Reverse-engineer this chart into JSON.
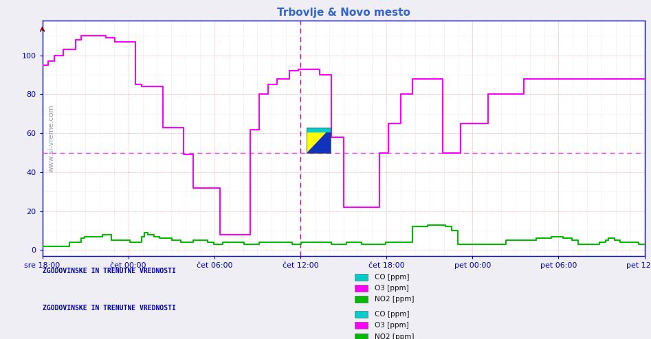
{
  "title": "Trbovlje & Novo mesto",
  "title_color": "#3366cc",
  "bg_color": "#eeeef4",
  "plot_bg_color": "#ffffff",
  "axis_color": "#0000bb",
  "grid_color_major": "#ffaaaa",
  "grid_color_minor": "#ccccdd",
  "watermark_text": "www.si-vreme.com",
  "watermark_color": "#8888aa",
  "x_labels": [
    "sre 18:00",
    "čet 00:00",
    "čet 06:00",
    "čet 12:00",
    "čet 18:00",
    "pet 00:00",
    "pet 06:00",
    "pet 12:00"
  ],
  "ylim": [
    -3,
    118
  ],
  "yticks": [
    0,
    20,
    40,
    60,
    80,
    100
  ],
  "hline_y": 50,
  "hline_color": "#ff44ff",
  "hline_style": "--",
  "o3_color": "#ff00ff",
  "no2_color": "#00bb00",
  "co_color": "#00cccc",
  "vline_color": "#aa00aa",
  "annotation_color": "#0000aa",
  "legend_entries": [
    {
      "label": "CO [ppm]",
      "color": "#00cccc"
    },
    {
      "label": "O3 [ppm]",
      "color": "#ff00ff"
    },
    {
      "label": "NO2 [ppm]",
      "color": "#00bb00"
    }
  ],
  "o3_data": [
    [
      0.0,
      95
    ],
    [
      0.01,
      97
    ],
    [
      0.02,
      100
    ],
    [
      0.035,
      103
    ],
    [
      0.055,
      108
    ],
    [
      0.065,
      110
    ],
    [
      0.095,
      110
    ],
    [
      0.105,
      109
    ],
    [
      0.12,
      107
    ],
    [
      0.14,
      107
    ],
    [
      0.155,
      85
    ],
    [
      0.165,
      84
    ],
    [
      0.185,
      84
    ],
    [
      0.2,
      63
    ],
    [
      0.22,
      63
    ],
    [
      0.235,
      49
    ],
    [
      0.25,
      32
    ],
    [
      0.28,
      32
    ],
    [
      0.295,
      8
    ],
    [
      0.33,
      8
    ],
    [
      0.345,
      62
    ],
    [
      0.36,
      80
    ],
    [
      0.375,
      85
    ],
    [
      0.39,
      88
    ],
    [
      0.41,
      92
    ],
    [
      0.425,
      93
    ],
    [
      0.45,
      93
    ],
    [
      0.46,
      90
    ],
    [
      0.475,
      90
    ],
    [
      0.48,
      58
    ],
    [
      0.495,
      58
    ],
    [
      0.5,
      22
    ],
    [
      0.545,
      22
    ],
    [
      0.56,
      50
    ],
    [
      0.575,
      65
    ],
    [
      0.595,
      80
    ],
    [
      0.615,
      88
    ],
    [
      0.66,
      88
    ],
    [
      0.665,
      50
    ],
    [
      0.68,
      50
    ],
    [
      0.695,
      65
    ],
    [
      0.73,
      65
    ],
    [
      0.74,
      80
    ],
    [
      0.79,
      80
    ],
    [
      0.8,
      88
    ],
    [
      1.167,
      88
    ]
  ],
  "no2_data": [
    [
      0.0,
      2
    ],
    [
      0.04,
      2
    ],
    [
      0.045,
      4
    ],
    [
      0.06,
      4
    ],
    [
      0.065,
      6
    ],
    [
      0.07,
      7
    ],
    [
      0.09,
      7
    ],
    [
      0.1,
      8
    ],
    [
      0.11,
      8
    ],
    [
      0.115,
      5
    ],
    [
      0.13,
      5
    ],
    [
      0.145,
      4
    ],
    [
      0.16,
      4
    ],
    [
      0.165,
      7
    ],
    [
      0.17,
      9
    ],
    [
      0.175,
      8
    ],
    [
      0.185,
      7
    ],
    [
      0.195,
      6
    ],
    [
      0.21,
      6
    ],
    [
      0.215,
      5
    ],
    [
      0.225,
      5
    ],
    [
      0.23,
      4
    ],
    [
      0.245,
      4
    ],
    [
      0.25,
      5
    ],
    [
      0.27,
      5
    ],
    [
      0.275,
      4
    ],
    [
      0.285,
      3
    ],
    [
      0.295,
      3
    ],
    [
      0.3,
      4
    ],
    [
      0.315,
      4
    ],
    [
      0.32,
      4
    ],
    [
      0.335,
      3
    ],
    [
      0.35,
      3
    ],
    [
      0.36,
      4
    ],
    [
      0.4,
      4
    ],
    [
      0.405,
      4
    ],
    [
      0.415,
      3
    ],
    [
      0.42,
      3
    ],
    [
      0.43,
      4
    ],
    [
      0.465,
      4
    ],
    [
      0.47,
      4
    ],
    [
      0.48,
      3
    ],
    [
      0.5,
      3
    ],
    [
      0.505,
      4
    ],
    [
      0.525,
      4
    ],
    [
      0.53,
      3
    ],
    [
      0.545,
      3
    ],
    [
      0.55,
      3
    ],
    [
      0.565,
      3
    ],
    [
      0.57,
      4
    ],
    [
      0.595,
      4
    ],
    [
      0.6,
      4
    ],
    [
      0.615,
      12
    ],
    [
      0.63,
      12
    ],
    [
      0.64,
      13
    ],
    [
      0.66,
      13
    ],
    [
      0.67,
      12
    ],
    [
      0.68,
      10
    ],
    [
      0.69,
      3
    ],
    [
      0.76,
      3
    ],
    [
      0.77,
      5
    ],
    [
      0.815,
      5
    ],
    [
      0.82,
      6
    ],
    [
      0.84,
      6
    ],
    [
      0.845,
      7
    ],
    [
      0.86,
      7
    ],
    [
      0.865,
      6
    ],
    [
      0.88,
      5
    ],
    [
      0.89,
      3
    ],
    [
      0.92,
      3
    ],
    [
      0.925,
      4
    ],
    [
      0.935,
      5
    ],
    [
      0.94,
      6
    ],
    [
      0.95,
      5
    ],
    [
      0.96,
      4
    ],
    [
      0.98,
      4
    ],
    [
      0.99,
      3
    ],
    [
      1.167,
      3
    ]
  ]
}
